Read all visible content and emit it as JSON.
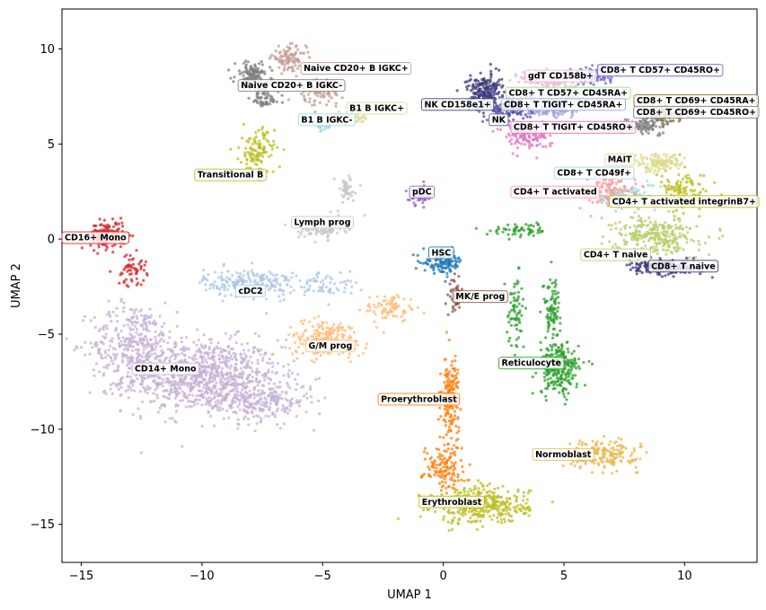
{
  "chart_data": {
    "type": "scatter",
    "xlabel": "UMAP 1",
    "ylabel": "UMAP 2",
    "xlim": [
      -15.8,
      13.0
    ],
    "ylim": [
      -17.0,
      12.1
    ],
    "xticks": [
      -15,
      -10,
      -5,
      0,
      5,
      10
    ],
    "yticks": [
      -15,
      -10,
      -5,
      0,
      5,
      10
    ],
    "xtick_labels": [
      "−15",
      "−10",
      "−5",
      "0",
      "5",
      "10"
    ],
    "ytick_labels": [
      "−15",
      "−10",
      "−5",
      "0",
      "5",
      "10"
    ],
    "clusters": [
      {
        "name": "CD14+ Mono",
        "color": "#c5b0d5",
        "label_x": -12.9,
        "label_y": -6.8,
        "blobs": [
          [
            -10.0,
            -7.2,
            2.7,
            1.6,
            900
          ],
          [
            -12.8,
            -5.5,
            1.5,
            1.8,
            350
          ],
          [
            -7.6,
            -8.5,
            1.8,
            0.9,
            250
          ]
        ]
      },
      {
        "name": "CD16+ Mono",
        "color": "#d62728",
        "label_x": -15.8,
        "label_y": 0.1,
        "blobs": [
          [
            -13.9,
            0.2,
            0.6,
            0.6,
            160
          ],
          [
            -12.9,
            -1.6,
            0.5,
            0.7,
            60
          ]
        ]
      },
      {
        "name": "cDC2",
        "color": "#aec7e8",
        "label_x": -8.6,
        "label_y": -2.7,
        "blobs": [
          [
            -8.0,
            -2.3,
            1.6,
            0.6,
            220
          ],
          [
            -4.8,
            -2.4,
            1.0,
            0.6,
            60
          ]
        ]
      },
      {
        "name": "G/M prog",
        "color": "#ffbb78",
        "label_x": -5.7,
        "label_y": -5.6,
        "blobs": [
          [
            -4.8,
            -5.2,
            1.4,
            0.8,
            180
          ],
          [
            -2.2,
            -3.6,
            0.9,
            0.6,
            80
          ]
        ]
      },
      {
        "name": "Lymph prog",
        "color": "#c7c7c7",
        "label_x": -6.3,
        "label_y": 0.9,
        "blobs": [
          [
            -5.0,
            0.6,
            0.8,
            0.5,
            110
          ],
          [
            -4.0,
            2.6,
            0.4,
            0.6,
            50
          ]
        ]
      },
      {
        "name": "Transitional B",
        "color": "#bcbd22",
        "label_x": -10.3,
        "label_y": 3.4,
        "blobs": [
          [
            -7.7,
            4.6,
            0.6,
            1.0,
            120
          ]
        ]
      },
      {
        "name": "Naive CD20+ B IGKC-",
        "color": "#7f7f7f",
        "label_x": -8.5,
        "label_y": 8.1,
        "blobs": [
          [
            -7.9,
            8.6,
            0.6,
            0.6,
            130
          ],
          [
            -7.4,
            7.4,
            0.5,
            0.5,
            60
          ]
        ]
      },
      {
        "name": "Naive CD20+ B IGKC+",
        "color": "#c49c94",
        "label_x": -5.9,
        "label_y": 9.0,
        "blobs": [
          [
            -6.4,
            9.5,
            0.6,
            0.5,
            100
          ],
          [
            -5.2,
            7.7,
            0.8,
            0.6,
            90
          ]
        ]
      },
      {
        "name": "B1 B IGKC+",
        "color": "#dbdb8d",
        "label_x": -4.0,
        "label_y": 6.9,
        "blobs": [
          [
            -3.6,
            6.4,
            0.4,
            0.3,
            30
          ]
        ]
      },
      {
        "name": "B1 B IGKC-",
        "color": "#9edae5",
        "label_x": -6.0,
        "label_y": 6.3,
        "blobs": [
          [
            -5.0,
            6.0,
            0.4,
            0.3,
            35
          ]
        ]
      },
      {
        "name": "pDC",
        "color": "#9467bd",
        "label_x": -1.4,
        "label_y": 2.5,
        "blobs": [
          [
            -0.9,
            2.3,
            0.4,
            0.4,
            60
          ]
        ]
      },
      {
        "name": "HSC",
        "color": "#1f77b4",
        "label_x": -0.6,
        "label_y": -0.7,
        "blobs": [
          [
            0.0,
            -1.2,
            0.7,
            0.5,
            130
          ]
        ]
      },
      {
        "name": "MK/E prog",
        "color": "#8c564b",
        "label_x": 0.4,
        "label_y": -3.0,
        "blobs": [
          [
            0.5,
            -3.0,
            0.2,
            0.7,
            50
          ]
        ]
      },
      {
        "name": "Proerythroblast",
        "color": "#ff7f0e",
        "label_x": -2.7,
        "label_y": -8.4,
        "blobs": [
          [
            0.3,
            -8.5,
            0.3,
            2.0,
            180
          ],
          [
            0.0,
            -12.0,
            0.7,
            1.0,
            120
          ]
        ]
      },
      {
        "name": "Erythroblast",
        "color": "#bcbd22",
        "label_x": -1.0,
        "label_y": -13.8,
        "blobs": [
          [
            1.6,
            -14.0,
            1.6,
            0.8,
            380
          ]
        ]
      },
      {
        "name": "Reticulocyte",
        "color": "#2ca02c",
        "label_x": 2.3,
        "label_y": -6.5,
        "blobs": [
          [
            4.8,
            -6.8,
            0.7,
            1.1,
            260
          ],
          [
            4.5,
            -3.6,
            0.3,
            1.3,
            90
          ],
          [
            3.0,
            -3.8,
            0.3,
            1.5,
            70
          ],
          [
            3.3,
            0.5,
            1.1,
            0.3,
            60
          ]
        ]
      },
      {
        "name": "Normoblast",
        "color": "#e7ba52",
        "label_x": 3.7,
        "label_y": -11.3,
        "blobs": [
          [
            6.5,
            -11.3,
            1.3,
            0.6,
            200
          ]
        ]
      },
      {
        "name": "NK CD158e1+",
        "color": "#393b79",
        "label_x": -0.9,
        "label_y": 7.1,
        "blobs": [
          [
            1.7,
            7.8,
            0.6,
            0.7,
            180
          ]
        ]
      },
      {
        "name": "NK",
        "color": "#5254a3",
        "label_x": 1.9,
        "label_y": 6.3,
        "blobs": [
          [
            2.8,
            6.9,
            0.8,
            0.6,
            150
          ]
        ]
      },
      {
        "name": "gdT CD158b+",
        "color": "#f7b6d2",
        "label_x": 3.4,
        "label_y": 8.6,
        "blobs": [
          [
            4.3,
            8.4,
            0.9,
            0.4,
            140
          ]
        ]
      },
      {
        "name": "CD8+ T CD57+ CD45RO+",
        "color": "#6b6ecf",
        "label_x": 6.4,
        "label_y": 8.9,
        "blobs": [
          [
            6.2,
            8.6,
            0.7,
            0.4,
            100
          ]
        ]
      },
      {
        "name": "CD8+ T CD57+ CD45RA+",
        "color": "#98df8a",
        "label_x": 2.6,
        "label_y": 7.7,
        "blobs": [
          [
            5.5,
            7.6,
            0.8,
            0.4,
            110
          ]
        ]
      },
      {
        "name": "CD8+ T TIGIT+ CD45RA+",
        "color": "#9c9ede",
        "label_x": 2.4,
        "label_y": 7.1,
        "blobs": [
          [
            4.5,
            6.9,
            0.9,
            0.4,
            120
          ]
        ]
      },
      {
        "name": "CD8+ T TIGIT+ CD45RO+",
        "color": "#e377c2",
        "label_x": 2.8,
        "label_y": 5.9,
        "blobs": [
          [
            3.4,
            5.5,
            0.8,
            0.6,
            150
          ]
        ]
      },
      {
        "name": "CD8+ T CD69+ CD45RA+",
        "color": "#8c6d31",
        "label_x": 7.9,
        "label_y": 7.3,
        "blobs": [
          [
            9.3,
            6.6,
            0.7,
            0.4,
            80
          ]
        ]
      },
      {
        "name": "CD8+ T CD69+ CD45RO+",
        "color": "#7f7f7f",
        "label_x": 7.9,
        "label_y": 6.7,
        "blobs": [
          [
            8.4,
            6.0,
            0.8,
            0.4,
            90
          ]
        ]
      },
      {
        "name": "MAIT",
        "color": "#dbdb8d",
        "label_x": 6.7,
        "label_y": 4.2,
        "blobs": [
          [
            8.9,
            4.0,
            0.9,
            0.4,
            120
          ]
        ]
      },
      {
        "name": "CD8+ T CD49f+",
        "color": "#9edae5",
        "label_x": 4.6,
        "label_y": 3.5,
        "blobs": [
          [
            7.6,
            2.2,
            1.0,
            0.6,
            120
          ]
        ]
      },
      {
        "name": "CD4+ T activated",
        "color": "#ff9896",
        "label_x": 2.8,
        "label_y": 2.5,
        "blobs": [
          [
            7.0,
            2.6,
            1.0,
            0.9,
            130
          ]
        ]
      },
      {
        "name": "CD4+ T activated integrinB7+",
        "color": "#bcbd22",
        "label_x": 7.0,
        "label_y": 2.0,
        "blobs": [
          [
            10.0,
            2.4,
            0.8,
            0.9,
            130
          ]
        ]
      },
      {
        "name": "CD4+ T naive",
        "color": "#b5cf6b",
        "label_x": 5.7,
        "label_y": -0.8,
        "blobs": [
          [
            8.8,
            0.2,
            1.4,
            0.8,
            280
          ]
        ]
      },
      {
        "name": "CD8+ T naive",
        "color": "#393b79",
        "label_x": 8.5,
        "label_y": -1.4,
        "blobs": [
          [
            9.2,
            -1.5,
            1.2,
            0.3,
            220
          ]
        ]
      }
    ]
  }
}
